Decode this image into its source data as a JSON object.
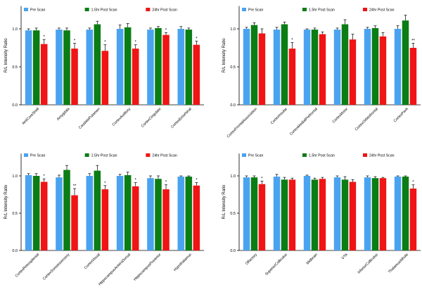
{
  "chart_data": [
    {
      "type": "bar",
      "ylabel": "R/L Intensity Ratio",
      "ylim": [
        0,
        1.3
      ],
      "yticks": [
        "0.0",
        "0.5",
        "1.0"
      ],
      "legend": [
        "Pre Scan",
        "1.5hr Post Scan",
        "24hr Post Scan"
      ],
      "colors": [
        "#4aa3f0",
        "#0a7d14",
        "#f01414"
      ],
      "categories": [
        "AntiCoreShell",
        "Amygdala",
        "CaudatePutamen",
        "CortexAuditory",
        "CortexCingulate",
        "CortexEntorhinal"
      ],
      "series": [
        {
          "name": "Pre Scan",
          "values": [
            0.98,
            0.99,
            0.99,
            1.0,
            0.99,
            1.0
          ],
          "errors": [
            0.02,
            0.02,
            0.02,
            0.05,
            0.02,
            0.03
          ]
        },
        {
          "name": "1.5hr Post Scan",
          "values": [
            0.98,
            0.98,
            1.06,
            1.02,
            1.01,
            0.99
          ],
          "errors": [
            0.03,
            0.03,
            0.04,
            0.05,
            0.02,
            0.02
          ]
        },
        {
          "name": "24hr Post Scan",
          "values": [
            0.8,
            0.74,
            0.71,
            0.74,
            0.92,
            0.79
          ],
          "errors": [
            0.06,
            0.07,
            0.08,
            0.05,
            0.03,
            0.05
          ]
        }
      ],
      "significance": [
        "*",
        "*",
        "*",
        "*",
        "*",
        "*"
      ]
    },
    {
      "type": "bar",
      "ylabel": "R/L Intensity Ratio",
      "ylim": [
        0,
        1.3
      ],
      "yticks": [
        "0.0",
        "0.5",
        "1.0"
      ],
      "legend": [
        "Pre Scan",
        "1.5hr Post Scan",
        "24hr Post Scan"
      ],
      "colors": [
        "#4aa3f0",
        "#0a7d14",
        "#f01414"
      ],
      "categories": [
        "CortexFrontalAssociation",
        "CortexInsular",
        "CortexMedialPrefrontal",
        "CortexMotor",
        "CortexOrbitofrontal",
        "CortexParA"
      ],
      "series": [
        {
          "name": "Pre Scan",
          "values": [
            1.0,
            0.99,
            0.99,
            0.99,
            1.0,
            1.0
          ],
          "errors": [
            0.02,
            0.03,
            0.01,
            0.02,
            0.02,
            0.04
          ]
        },
        {
          "name": "1.5hr Post Scan",
          "values": [
            1.05,
            1.06,
            0.99,
            1.06,
            1.01,
            1.11
          ],
          "errors": [
            0.03,
            0.03,
            0.02,
            0.06,
            0.03,
            0.07
          ]
        },
        {
          "name": "24hr Post Scan",
          "values": [
            0.94,
            0.74,
            0.93,
            0.86,
            0.9,
            0.75
          ],
          "errors": [
            0.06,
            0.08,
            0.03,
            0.07,
            0.05,
            0.06
          ]
        }
      ],
      "significance": [
        "",
        "*",
        "",
        "",
        "",
        "**"
      ]
    },
    {
      "type": "bar",
      "ylabel": "R/L Intensity Ratio",
      "ylim": [
        0,
        1.3
      ],
      "yticks": [
        "0.0",
        "0.5",
        "1.0"
      ],
      "legend": [
        "Pre Scan",
        "1.5hr Post Scan",
        "24hr Post Scan"
      ],
      "colors": [
        "#4aa3f0",
        "#0a7d14",
        "#f01414"
      ],
      "categories": [
        "CortexRetrosplenial",
        "CortexSomatosensory",
        "CortexVisual",
        "HippocampusAnteroDorsal",
        "HippocampusPosterior",
        "Hypothalamus"
      ],
      "series": [
        {
          "name": "Pre Scan",
          "values": [
            1.01,
            0.98,
            1.0,
            1.0,
            0.97,
            0.99
          ],
          "errors": [
            0.02,
            0.03,
            0.03,
            0.02,
            0.03,
            0.01
          ]
        },
        {
          "name": "1.5hr Post Scan",
          "values": [
            1.0,
            1.08,
            1.07,
            1.01,
            0.96,
            0.99
          ],
          "errors": [
            0.03,
            0.06,
            0.07,
            0.04,
            0.04,
            0.01
          ]
        },
        {
          "name": "24hr Post Scan",
          "values": [
            0.92,
            0.74,
            0.82,
            0.86,
            0.82,
            0.87
          ],
          "errors": [
            0.04,
            0.09,
            0.05,
            0.05,
            0.06,
            0.04
          ]
        }
      ],
      "significance": [
        "*",
        "**",
        "*",
        "*",
        "*",
        "*"
      ]
    },
    {
      "type": "bar",
      "ylabel": "R/L Intensity Ratio",
      "ylim": [
        0,
        1.3
      ],
      "yticks": [
        "0.0",
        "0.5",
        "1.0"
      ],
      "legend": [
        "Pre Scan",
        "1.5hr Post Scan",
        "24hr Post Scan"
      ],
      "colors": [
        "#4aa3f0",
        "#0a7d14",
        "#f01414"
      ],
      "categories": [
        "Olfactory",
        "SuperiorColliculus",
        "Midbrain",
        "VTA",
        "InferiorColliculus",
        "ThalamusWhole"
      ],
      "series": [
        {
          "name": "Pre Scan",
          "values": [
            0.98,
            0.99,
            1.0,
            0.98,
            0.98,
            0.99
          ],
          "errors": [
            0.02,
            0.03,
            0.01,
            0.02,
            0.02,
            0.01
          ]
        },
        {
          "name": "1.5hr Post Scan",
          "values": [
            0.98,
            0.95,
            0.95,
            0.95,
            0.97,
            0.99
          ],
          "errors": [
            0.02,
            0.03,
            0.02,
            0.04,
            0.02,
            0.01
          ]
        },
        {
          "name": "24hr Post Scan",
          "values": [
            0.89,
            0.95,
            0.96,
            0.92,
            0.97,
            0.83
          ],
          "errors": [
            0.04,
            0.02,
            0.02,
            0.03,
            0.01,
            0.05
          ]
        }
      ],
      "significance": [
        "*",
        "",
        "",
        "",
        "",
        "*"
      ]
    }
  ]
}
